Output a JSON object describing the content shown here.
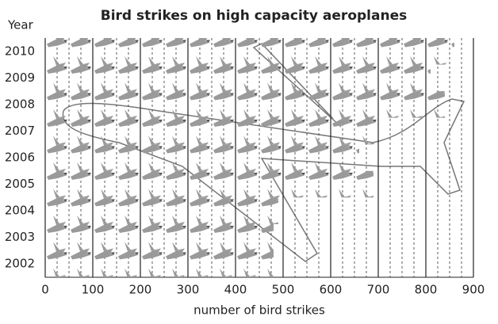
{
  "chart_data": {
    "type": "pictogram-bar",
    "title": "Bird strikes on high capacity aeroplanes",
    "y_axis_label": "Year",
    "x_axis_label": "number of bird strikes",
    "categories": [
      "2010",
      "2009",
      "2008",
      "2007",
      "2006",
      "2005",
      "2004",
      "2003",
      "2002"
    ],
    "values": [
      860,
      810,
      840,
      700,
      660,
      690,
      490,
      480,
      480
    ],
    "color": "#9a9a9a",
    "xlim": [
      0,
      900
    ],
    "xticks": [
      0,
      100,
      200,
      300,
      400,
      500,
      600,
      700,
      800,
      900
    ],
    "grid": true
  }
}
